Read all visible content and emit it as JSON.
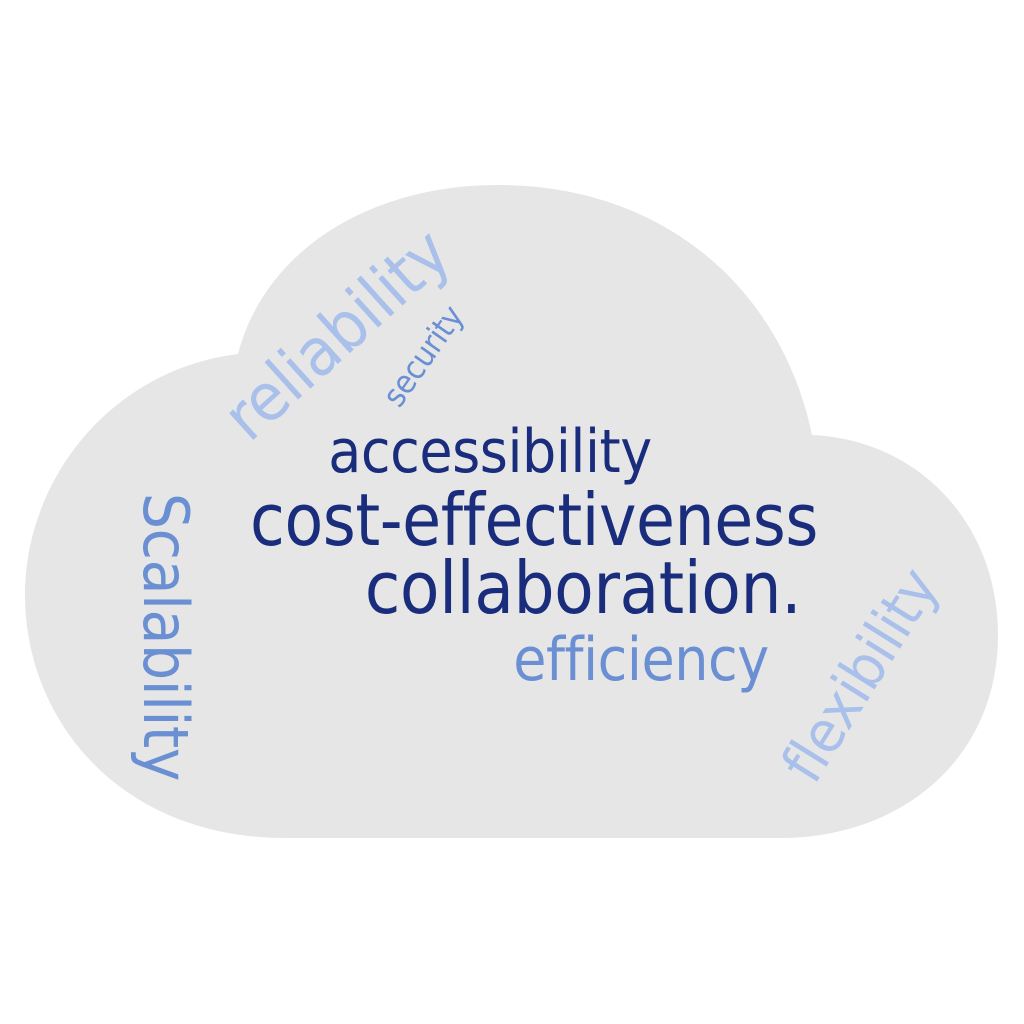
{
  "cloud": {
    "fill": "#e6e6e7"
  },
  "colors": {
    "dark": "#1a2d7c",
    "medium": "#6a8fd2",
    "light": "#a9c0ea"
  },
  "words": {
    "accessibility": {
      "text": "accessibility",
      "color": "#1a2d7c"
    },
    "cost_effectiveness": {
      "text": "cost-effectiveness",
      "color": "#1a2d7c"
    },
    "collaboration": {
      "text": "collaboration.",
      "color": "#1a2d7c"
    },
    "efficiency": {
      "text": "efficiency",
      "color": "#6a8fd2"
    },
    "reliability": {
      "text": "reliability",
      "color": "#a9c0ea"
    },
    "security": {
      "text": "security",
      "color": "#6a8fd2"
    },
    "scalability": {
      "text": "Scalability",
      "color": "#6a8fd2"
    },
    "flexibility": {
      "text": "flexibility",
      "color": "#a9c0ea"
    }
  }
}
